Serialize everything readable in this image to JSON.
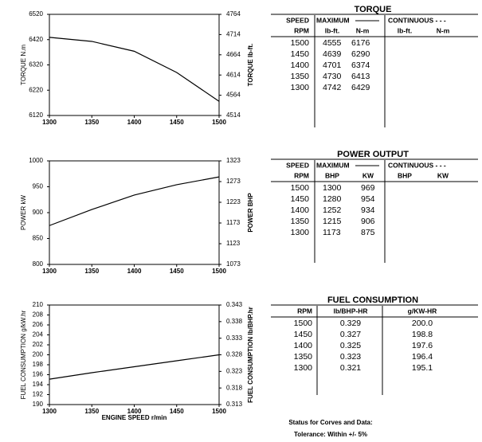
{
  "chart_data": [
    {
      "type": "line",
      "ylabel": "TORQUE  N.m",
      "y2label": "TORQUE  lb-ft.",
      "x": [
        1300,
        1350,
        1400,
        1450,
        1500
      ],
      "series": [
        {
          "color": "#000000",
          "values": [
            6429,
            6413,
            6374,
            6290,
            6176
          ]
        }
      ],
      "xlim": [
        1300,
        1500
      ],
      "xticks": [
        1300,
        1350,
        1400,
        1450,
        1500
      ],
      "ylim": [
        6120,
        6520
      ],
      "yticks": [
        6120,
        6220,
        6320,
        6420,
        6520
      ],
      "y2lim": [
        4514,
        4764
      ],
      "y2ticks": [
        4514,
        4564,
        4614,
        4664,
        4714,
        4764
      ],
      "grid": false
    },
    {
      "type": "line",
      "ylabel": "POWER  kW",
      "y2label": "POWER  BHP",
      "x": [
        1300,
        1350,
        1400,
        1450,
        1500
      ],
      "series": [
        {
          "color": "#000000",
          "values": [
            875,
            906,
            934,
            954,
            969
          ]
        }
      ],
      "xlim": [
        1300,
        1500
      ],
      "xticks": [
        1300,
        1350,
        1400,
        1450,
        1500
      ],
      "ylim": [
        800,
        1000
      ],
      "yticks": [
        800,
        850,
        900,
        950,
        1000
      ],
      "y2lim": [
        1073,
        1323
      ],
      "y2ticks": [
        1073,
        1123,
        1173,
        1223,
        1273,
        1323
      ],
      "grid": false
    },
    {
      "type": "line",
      "ylabel": "FUEL CONSUMPTION  g/kW.hr",
      "y2label": "FUEL CONSUMPTION  lb/BHP.hr",
      "xlabel": "ENGINE SPEED  r/min",
      "x": [
        1300,
        1350,
        1400,
        1450,
        1500
      ],
      "series": [
        {
          "color": "#000000",
          "values": [
            195.1,
            196.4,
            197.6,
            198.8,
            200.0
          ]
        }
      ],
      "xlim": [
        1300,
        1500
      ],
      "xticks": [
        1300,
        1350,
        1400,
        1450,
        1500
      ],
      "ylim": [
        190,
        210
      ],
      "yticks": [
        190,
        192,
        194,
        196,
        198,
        200,
        202,
        204,
        206,
        208,
        210
      ],
      "y2lim": [
        0.313,
        0.343
      ],
      "y2ticks": [
        0.313,
        0.318,
        0.323,
        0.328,
        0.333,
        0.338,
        0.343
      ],
      "grid": false
    }
  ],
  "tables": [
    {
      "title": "TORQUE",
      "header_rows": [
        [
          "SPEED",
          "MAXIMUM",
          "CONTINUOUS - - -"
        ],
        [
          "RPM",
          "lb-ft.",
          "N-m",
          "lb-ft.",
          "N-m"
        ]
      ],
      "rows": [
        [
          "1500",
          "4555",
          "6176"
        ],
        [
          "1450",
          "4639",
          "6290"
        ],
        [
          "1400",
          "4701",
          "6374"
        ],
        [
          "1350",
          "4730",
          "6413"
        ],
        [
          "1300",
          "4742",
          "6429"
        ]
      ]
    },
    {
      "title": "POWER OUTPUT",
      "header_rows": [
        [
          "SPEED",
          "MAXIMUM",
          "CONTINUOUS - - -"
        ],
        [
          "RPM",
          "BHP",
          "KW",
          "BHP",
          "KW"
        ]
      ],
      "rows": [
        [
          "1500",
          "1300",
          "969"
        ],
        [
          "1450",
          "1280",
          "954"
        ],
        [
          "1400",
          "1252",
          "934"
        ],
        [
          "1350",
          "1215",
          "906"
        ],
        [
          "1300",
          "1173",
          "875"
        ]
      ]
    },
    {
      "title": "FUEL CONSUMPTION",
      "header_rows": [
        [
          "RPM",
          "lb/BHP-HR",
          "g/KW-HR"
        ]
      ],
      "rows": [
        [
          "1500",
          "0.329",
          "200.0"
        ],
        [
          "1450",
          "0.327",
          "198.8"
        ],
        [
          "1400",
          "0.325",
          "197.6"
        ],
        [
          "1350",
          "0.323",
          "196.4"
        ],
        [
          "1300",
          "0.321",
          "195.1"
        ]
      ]
    }
  ],
  "footer": [
    "Status for Corves and Data:",
    "Tolerance: Within +/- 5%"
  ]
}
